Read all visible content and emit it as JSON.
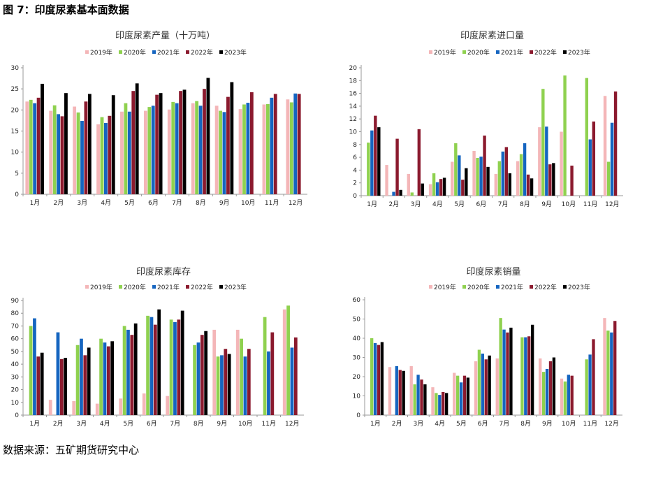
{
  "figure_title": "图 7：印度尿素基本面数据",
  "source": "数据来源：五矿期货研究中心",
  "legend": [
    "2019年",
    "2020年",
    "2021年",
    "2022年",
    "2023年"
  ],
  "colors": [
    "#f4b6b8",
    "#8fd14f",
    "#1565c0",
    "#8b1a2e",
    "#000000"
  ],
  "chart_data": [
    {
      "type": "bar",
      "title": "印度尿素产量（十万吨）",
      "legend_position": "top",
      "categories": [
        "1月",
        "2月",
        "3月",
        "4月",
        "5月",
        "6月",
        "7月",
        "8月",
        "9月",
        "10月",
        "11月",
        "12月"
      ],
      "ylim": [
        0,
        30
      ],
      "yticks": [
        0,
        5,
        10,
        15,
        20,
        25,
        30
      ],
      "series": [
        {
          "name": "2019年",
          "values": [
            22.0,
            19.8,
            20.8,
            16.6,
            19.6,
            19.8,
            20.1,
            21.6,
            21.0,
            20.2,
            21.3,
            22.5
          ]
        },
        {
          "name": "2020年",
          "values": [
            22.4,
            21.1,
            19.4,
            18.3,
            21.6,
            20.7,
            21.9,
            22.1,
            19.8,
            21.3,
            21.4,
            21.8
          ]
        },
        {
          "name": "2021年",
          "values": [
            21.6,
            19.0,
            17.4,
            16.9,
            19.6,
            21.0,
            21.6,
            21.0,
            19.5,
            21.7,
            22.9,
            23.9
          ]
        },
        {
          "name": "2022年",
          "values": [
            22.9,
            18.5,
            22.0,
            18.6,
            24.5,
            23.6,
            24.5,
            25.0,
            23.1,
            24.2,
            23.8,
            23.8
          ]
        },
        {
          "name": "2023年",
          "values": [
            26.2,
            24.0,
            23.8,
            23.5,
            26.3,
            24.0,
            24.8,
            27.6,
            26.6,
            null,
            null,
            null
          ]
        }
      ]
    },
    {
      "type": "bar",
      "title": "印度尿素进口量",
      "legend_position": "top",
      "categories": [
        "1月",
        "2月",
        "3月",
        "4月",
        "5月",
        "6月",
        "7月",
        "8月",
        "9月",
        "10月",
        "11月",
        "12月"
      ],
      "ylim": [
        0,
        20
      ],
      "yticks": [
        0,
        2,
        4,
        6,
        8,
        10,
        12,
        14,
        16,
        18,
        20
      ],
      "series": [
        {
          "name": "2019年",
          "values": [
            null,
            4.8,
            3.4,
            1.8,
            5.3,
            7.0,
            3.4,
            5.4,
            10.7,
            10.0,
            null,
            15.6
          ]
        },
        {
          "name": "2020年",
          "values": [
            8.3,
            null,
            0.5,
            3.5,
            8.2,
            5.9,
            5.4,
            6.5,
            16.7,
            18.8,
            18.4,
            5.3
          ]
        },
        {
          "name": "2021年",
          "values": [
            10.2,
            0.6,
            null,
            2.1,
            6.3,
            6.1,
            6.9,
            8.2,
            10.8,
            null,
            8.8,
            11.4
          ]
        },
        {
          "name": "2022年",
          "values": [
            12.5,
            8.9,
            10.4,
            2.6,
            2.5,
            9.4,
            7.6,
            3.3,
            4.9,
            4.7,
            11.6,
            16.3
          ]
        },
        {
          "name": "2023年",
          "values": [
            10.7,
            0.9,
            1.9,
            2.8,
            4.3,
            4.5,
            3.5,
            2.7,
            5.1,
            null,
            null,
            null
          ]
        }
      ]
    },
    {
      "type": "bar",
      "title": "印度尿素库存",
      "legend_position": "top",
      "categories": [
        "1月",
        "2月",
        "3月",
        "4月",
        "5月",
        "6月",
        "7月",
        "8月",
        "9月",
        "10月",
        "11月",
        "12月"
      ],
      "ylim": [
        0,
        90
      ],
      "yticks": [
        0,
        10,
        20,
        30,
        40,
        50,
        60,
        70,
        80,
        90
      ],
      "series": [
        {
          "name": "2019年",
          "values": [
            null,
            12,
            11,
            9,
            13,
            17,
            15,
            null,
            67,
            67,
            null,
            83
          ]
        },
        {
          "name": "2020年",
          "values": [
            70,
            null,
            55,
            60,
            70,
            78,
            75,
            55,
            46,
            60,
            77,
            86
          ]
        },
        {
          "name": "2021年",
          "values": [
            76,
            65,
            60,
            57,
            67,
            77,
            73,
            57,
            47,
            46,
            50,
            53
          ]
        },
        {
          "name": "2022年",
          "values": [
            46,
            44,
            47,
            54,
            63,
            71,
            75,
            63,
            52,
            52,
            65,
            61
          ]
        },
        {
          "name": "2023年",
          "values": [
            49,
            45,
            53,
            58,
            72,
            83,
            82,
            66,
            48,
            null,
            null,
            null
          ]
        }
      ]
    },
    {
      "type": "bar",
      "title": "印度尿素销量",
      "legend_position": "top",
      "categories": [
        "1月",
        "2月",
        "3月",
        "4月",
        "5月",
        "6月",
        "7月",
        "8月",
        "9月",
        "10月",
        "11月",
        "12月"
      ],
      "ylim": [
        0,
        60
      ],
      "yticks": [
        0,
        10,
        20,
        30,
        40,
        50,
        60
      ],
      "series": [
        {
          "name": "2019年",
          "values": [
            null,
            25,
            25.5,
            14.5,
            22,
            28,
            29.5,
            null,
            29.5,
            19,
            null,
            50.5
          ]
        },
        {
          "name": "2020年",
          "values": [
            40,
            null,
            16,
            11.5,
            20.5,
            34,
            50.5,
            40.5,
            22.5,
            17.5,
            29,
            44
          ]
        },
        {
          "name": "2021年",
          "values": [
            37.5,
            25.5,
            21,
            10.5,
            17,
            32,
            44.5,
            40.5,
            24,
            21,
            31.5,
            43
          ]
        },
        {
          "name": "2022年",
          "values": [
            36.5,
            23.5,
            18.5,
            12,
            20.5,
            29,
            43,
            41,
            28,
            20.5,
            39.5,
            49
          ]
        },
        {
          "name": "2023年",
          "values": [
            38,
            23,
            16,
            11.5,
            19.5,
            31,
            45.5,
            47,
            30,
            null,
            null,
            null
          ]
        }
      ]
    }
  ]
}
